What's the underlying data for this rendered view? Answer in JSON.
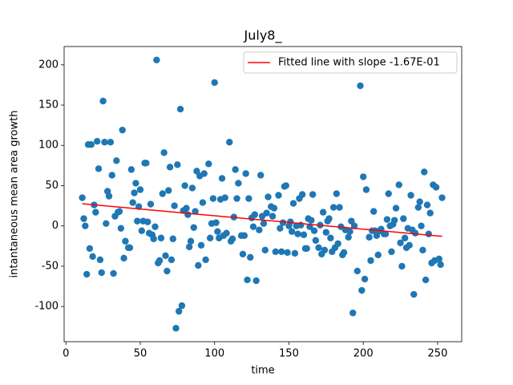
{
  "chart_data": {
    "type": "scatter",
    "title": "July8_",
    "x_label": "time",
    "y_label": "intantaneous mean area growth",
    "xlim": [
      -1.2,
      266.2
    ],
    "xticks": [
      0,
      50,
      100,
      150,
      200,
      250
    ],
    "ylim": [
      -143.7,
      222.7
    ],
    "yticks": [
      -100,
      -50,
      0,
      50,
      100,
      150,
      200
    ],
    "legend": "upper right",
    "series": [
      {
        "type": "scatter",
        "color": "#1f77b4",
        "x": [
          11,
          12,
          13,
          14,
          15,
          16,
          17,
          18,
          19,
          20,
          21,
          22,
          23,
          24,
          25,
          26,
          27,
          28,
          29,
          30,
          31,
          32,
          33,
          34,
          35,
          36,
          37,
          38,
          39,
          40,
          42,
          43,
          44,
          45,
          46,
          47,
          48,
          49,
          50,
          51,
          52,
          53,
          54,
          55,
          56,
          57,
          58,
          59,
          60,
          61,
          62,
          63,
          64,
          65,
          66,
          67,
          68,
          69,
          70,
          71,
          72,
          73,
          74,
          75,
          76,
          77,
          78,
          79,
          80,
          81,
          82,
          83,
          84,
          85,
          86,
          87,
          88,
          89,
          90,
          91,
          92,
          93,
          94,
          96,
          97,
          98,
          99,
          100,
          101,
          102,
          103,
          104,
          105,
          106,
          107,
          108,
          110,
          111,
          112,
          113,
          114,
          115,
          116,
          118,
          119,
          120,
          121,
          122,
          123,
          124,
          125,
          126,
          127,
          128,
          130,
          131,
          132,
          133,
          134,
          135,
          136,
          138,
          139,
          140,
          141,
          143,
          144,
          145,
          146,
          147,
          148,
          149,
          150,
          151,
          152,
          153,
          154,
          155,
          156,
          157,
          158,
          159,
          160,
          161,
          162,
          163,
          164,
          165,
          166,
          167,
          168,
          170,
          171,
          172,
          173,
          174,
          175,
          176,
          177,
          178,
          179,
          180,
          181,
          182,
          183,
          184,
          185,
          186,
          187,
          188,
          190,
          191,
          192,
          193,
          194,
          196,
          198,
          199,
          200,
          201,
          202,
          204,
          205,
          206,
          207,
          208,
          209,
          210,
          211,
          212,
          214,
          215,
          216,
          217,
          218,
          219,
          220,
          221,
          222,
          224,
          225,
          226,
          227,
          228,
          229,
          230,
          231,
          232,
          233,
          234,
          235,
          237,
          238,
          239,
          240,
          241,
          242,
          243,
          244,
          245,
          246,
          247,
          248,
          249,
          251,
          252,
          253
        ],
        "values": [
          35,
          9,
          0,
          -60,
          101,
          -28,
          101,
          -38,
          26,
          17,
          105,
          71,
          -42,
          -58,
          155,
          104,
          3,
          43,
          37,
          104,
          63,
          -59,
          12,
          81,
          17,
          18,
          -3,
          119,
          -40,
          -19,
          -27,
          -27,
          70,
          29,
          41,
          53,
          6,
          24,
          45,
          -6,
          6,
          78,
          78,
          5,
          -9,
          27,
          -11,
          -16,
          -1,
          206,
          -46,
          -43,
          -15,
          40,
          91,
          -37,
          -56,
          44,
          73,
          -42,
          -16,
          25,
          -127,
          76,
          -106,
          145,
          -99,
          19,
          50,
          22,
          14,
          -26,
          -19,
          47,
          -2,
          18,
          68,
          -49,
          62,
          -24,
          29,
          65,
          -42,
          77,
          -15,
          3,
          34,
          178,
          4,
          -7,
          -15,
          33,
          59,
          -12,
          35,
          -9,
          104,
          -19,
          -16,
          11,
          70,
          34,
          53,
          -12,
          -35,
          -12,
          65,
          -67,
          34,
          -39,
          10,
          -1,
          14,
          -68,
          -5,
          63,
          12,
          3,
          -30,
          16,
          36,
          24,
          12,
          22,
          -32,
          38,
          -3,
          -32,
          4,
          49,
          50,
          -33,
          0,
          5,
          -7,
          28,
          -34,
          0,
          -10,
          34,
          1,
          39,
          -11,
          -28,
          -28,
          9,
          -1,
          7,
          39,
          -6,
          -18,
          -27,
          1,
          -35,
          17,
          -30,
          -8,
          6,
          9,
          -15,
          -32,
          23,
          -27,
          40,
          -22,
          23,
          -1,
          -36,
          -33,
          -5,
          -14,
          -7,
          6,
          -108,
          0,
          -56,
          174,
          -80,
          61,
          -66,
          45,
          -14,
          -43,
          -6,
          18,
          -6,
          -12,
          -36,
          -6,
          -4,
          -10,
          -10,
          8,
          40,
          0,
          -32,
          2,
          7,
          22,
          51,
          -21,
          -50,
          9,
          -15,
          -27,
          -3,
          -24,
          38,
          -5,
          -85,
          -9,
          23,
          30,
          0,
          -30,
          67,
          -67,
          26,
          -10,
          16,
          -46,
          51,
          -43,
          48,
          -41,
          -48,
          35
        ]
      },
      {
        "type": "line",
        "name": "Fitted line with slope -1.67E-01",
        "color": "#ff0000",
        "x": [
          11,
          253
        ],
        "values": [
          27.5,
          -12.9
        ]
      }
    ]
  }
}
